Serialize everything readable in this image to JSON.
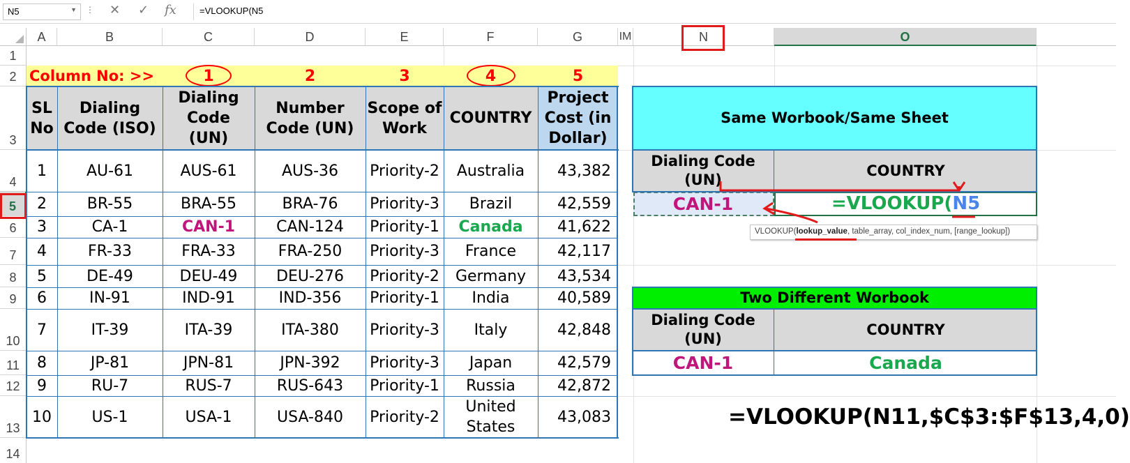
{
  "formula_bar": {
    "name_box": "N5",
    "formula": "=VLOOKUP(N5",
    "cancel_icon": "✕",
    "enter_icon": "✓",
    "fx_icon": "fx"
  },
  "columns": [
    "A",
    "B",
    "C",
    "D",
    "E",
    "F",
    "G",
    "IM",
    "N",
    "O"
  ],
  "rows": [
    "1",
    "2",
    "3",
    "4",
    "5",
    "6",
    "7",
    "8",
    "9",
    "10",
    "11",
    "12",
    "13",
    "14"
  ],
  "column_numbers": {
    "label": "Column No: >>",
    "c": "1",
    "d": "2",
    "e": "3",
    "f": "4",
    "g": "5"
  },
  "table": {
    "headers": [
      "SL No",
      "Dialing Code (ISO)",
      "Dialing Code (UN)",
      "Number Code (UN)",
      "Scope of Work",
      "COUNTRY",
      "Project Cost (in Dollar)"
    ],
    "rows": [
      [
        "1",
        "AU-61",
        "AUS-61",
        "AUS-36",
        "Priority-2",
        "Australia",
        "43,382"
      ],
      [
        "2",
        "BR-55",
        "BRA-55",
        "BRA-76",
        "Priority-3",
        "Brazil",
        "42,559"
      ],
      [
        "3",
        "CA-1",
        "CAN-1",
        "CAN-124",
        "Priority-1",
        "Canada",
        "41,622"
      ],
      [
        "4",
        "FR-33",
        "FRA-33",
        "FRA-250",
        "Priority-3",
        "France",
        "42,117"
      ],
      [
        "5",
        "DE-49",
        "DEU-49",
        "DEU-276",
        "Priority-2",
        "Germany",
        "43,534"
      ],
      [
        "6",
        "IN-91",
        "IND-91",
        "IND-356",
        "Priority-1",
        "India",
        "40,589"
      ],
      [
        "7",
        "IT-39",
        "ITA-39",
        "ITA-380",
        "Priority-3",
        "Italy",
        "42,848"
      ],
      [
        "8",
        "JP-81",
        "JPN-81",
        "JPN-392",
        "Priority-3",
        "Japan",
        "42,579"
      ],
      [
        "9",
        "RU-7",
        "RUS-7",
        "RUS-643",
        "Priority-1",
        "Russia",
        "42,872"
      ],
      [
        "10",
        "US-1",
        "USA-1",
        "USA-840",
        "Priority-2",
        "United States",
        "43,083"
      ]
    ]
  },
  "box1": {
    "title": "Same Worbook/Same Sheet",
    "h1": "Dialing Code (UN)",
    "h2": "COUNTRY",
    "v1": "CAN-1",
    "v2_prefix": "=VLOOKUP(",
    "v2_ref": "N5"
  },
  "tooltip": {
    "fn": "VLOOKUP(",
    "arg1": "lookup_value",
    "rest": ", table_array, col_index_num, [range_lookup])"
  },
  "box2": {
    "title": "Two Different Worbook",
    "h1": "Dialing Code (UN)",
    "h2": "COUNTRY",
    "v1": "CAN-1",
    "v2": "Canada"
  },
  "bottom_formula": "=VLOOKUP(N11,$C$3:$F$13,4,0)",
  "colors": {
    "cyan": "#66ffff",
    "green": "#00ee00",
    "yellow": "#ffff99",
    "header_gray": "#d9d9d9",
    "blue_head": "#bdd7ee",
    "accent_red": "#ff0000",
    "magenta": "#c0157a",
    "green_text": "#1aa84f",
    "ref_blue": "#4a86e8"
  }
}
